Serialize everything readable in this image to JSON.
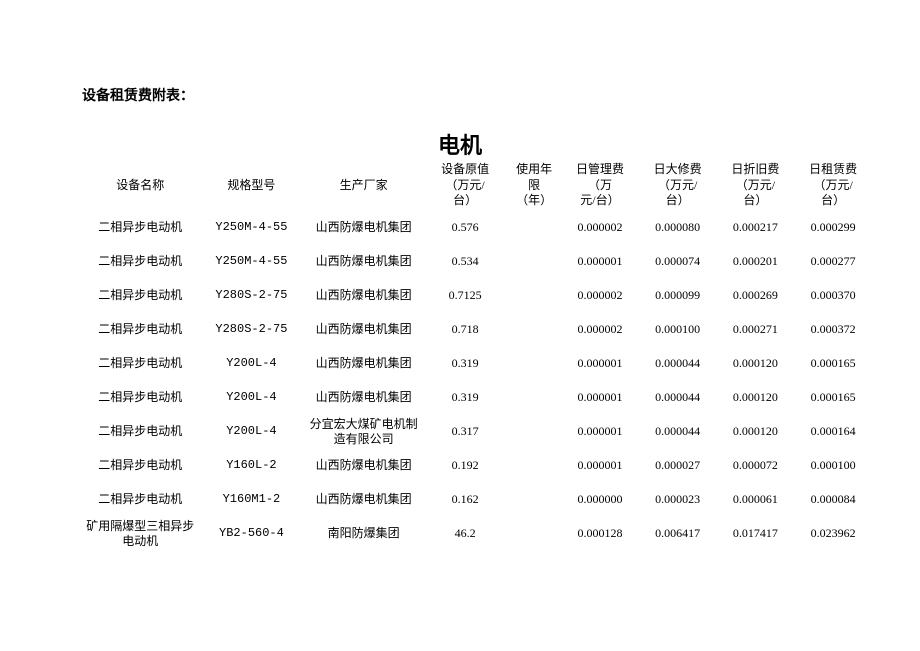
{
  "page_title": "设备租赁费附表：",
  "heading": "电机",
  "columns": {
    "c0": "设备名称",
    "c1": "规格型号",
    "c2": "生产厂家",
    "c3": "设备原值\n（万元/\n台）",
    "c4": "使用年\n限\n（年）",
    "c5": "日管理费\n（万\n元/台）",
    "c6": "日大修费\n（万元/\n台）",
    "c7": "日折旧费\n（万元/\n台）",
    "c8": "日租赁费\n（万元/\n台）"
  },
  "rows": [
    {
      "name": "二相异步电动机",
      "model": "Y250M-4-55",
      "mfr": "山西防爆电机集团",
      "price": "0.576",
      "years": "",
      "mgmt": "0.000002",
      "repair": "0.000080",
      "depr": "0.000217",
      "rent": "0.000299"
    },
    {
      "name": "二相异步电动机",
      "model": "Y250M-4-55",
      "mfr": "山西防爆电机集团",
      "price": "0.534",
      "years": "",
      "mgmt": "0.000001",
      "repair": "0.000074",
      "depr": "0.000201",
      "rent": "0.000277"
    },
    {
      "name": "二相异步电动机",
      "model": "Y280S-2-75",
      "mfr": "山西防爆电机集团",
      "price": "0.7125",
      "years": "",
      "mgmt": "0.000002",
      "repair": "0.000099",
      "depr": "0.000269",
      "rent": "0.000370"
    },
    {
      "name": "二相异步电动机",
      "model": "Y280S-2-75",
      "mfr": "山西防爆电机集团",
      "price": "0.718",
      "years": "",
      "mgmt": "0.000002",
      "repair": "0.000100",
      "depr": "0.000271",
      "rent": "0.000372"
    },
    {
      "name": "二相异步电动机",
      "model": "Y200L-4",
      "mfr": "山西防爆电机集团",
      "price": "0.319",
      "years": "",
      "mgmt": "0.000001",
      "repair": "0.000044",
      "depr": "0.000120",
      "rent": "0.000165"
    },
    {
      "name": "二相异步电动机",
      "model": "Y200L-4",
      "mfr": "山西防爆电机集团",
      "price": "0.319",
      "years": "",
      "mgmt": "0.000001",
      "repair": "0.000044",
      "depr": "0.000120",
      "rent": "0.000165"
    },
    {
      "name": "二相异步电动机",
      "model": "Y200L-4",
      "mfr": "分宜宏大煤矿电机制造有限公司",
      "price": "0.317",
      "years": "",
      "mgmt": "0.000001",
      "repair": "0.000044",
      "depr": "0.000120",
      "rent": "0.000164"
    },
    {
      "name": "二相异步电动机",
      "model": "Y160L-2",
      "mfr": "山西防爆电机集团",
      "price": "0.192",
      "years": "",
      "mgmt": "0.000001",
      "repair": "0.000027",
      "depr": "0.000072",
      "rent": "0.000100"
    },
    {
      "name": "二相异步电动机",
      "model": "Y160M1-2",
      "mfr": "山西防爆电机集团",
      "price": "0.162",
      "years": "",
      "mgmt": "0.000000",
      "repair": "0.000023",
      "depr": "0.000061",
      "rent": "0.000084"
    },
    {
      "name": "矿用隔爆型三相异步电动机",
      "model": "YB2-560-4",
      "mfr": "南阳防爆集团",
      "price": "46.2",
      "years": "",
      "mgmt": "0.000128",
      "repair": "0.006417",
      "depr": "0.017417",
      "rent": "0.023962"
    }
  ]
}
